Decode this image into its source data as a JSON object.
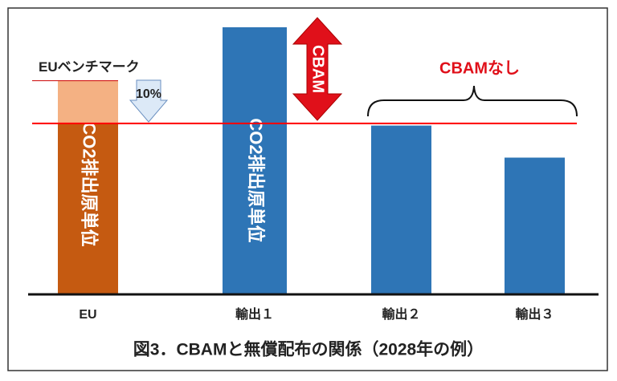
{
  "chart_data": {
    "type": "bar",
    "title": "図3．CBAMと無償配布の関係（2028年の例）",
    "categories": [
      "EU",
      "輸出１",
      "輸出２",
      "輸出３"
    ],
    "bar_text": "CO2排出原単位",
    "series": [
      {
        "colors": [
          "#c55a11",
          "#2e75b6",
          "#2e75b6",
          "#2e75b6"
        ],
        "values": [
          80,
          125,
          79,
          64
        ]
      },
      {
        "color": "#f4b183",
        "values": [
          20,
          null,
          null,
          null
        ]
      }
    ],
    "ylim": [
      0,
      125
    ],
    "benchmark": {
      "label": "EUベンチマーク",
      "value": 100
    },
    "reduction_label": "10%",
    "line": {
      "value": 80,
      "color": "#ff0000"
    },
    "cbam_label": "CBAM",
    "no_cbam_label": "CBAMなし"
  }
}
